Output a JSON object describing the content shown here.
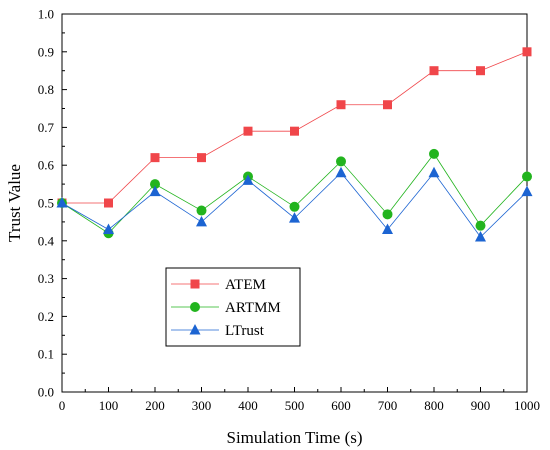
{
  "chart_data": {
    "type": "line",
    "title": "",
    "xlabel": "Simulation Time (s)",
    "ylabel": "Trust Value",
    "xlim": [
      0,
      1000
    ],
    "ylim": [
      0.0,
      1.0
    ],
    "x_ticks": [
      0,
      100,
      200,
      300,
      400,
      500,
      600,
      700,
      800,
      900,
      1000
    ],
    "y_ticks": [
      0.0,
      0.1,
      0.2,
      0.3,
      0.4,
      0.5,
      0.6,
      0.7,
      0.8,
      0.9,
      1.0
    ],
    "x_tick_labels": [
      "0",
      "100",
      "200",
      "300",
      "400",
      "500",
      "600",
      "700",
      "800",
      "900",
      "1000"
    ],
    "y_tick_labels": [
      "0.0",
      "0.1",
      "0.2",
      "0.3",
      "0.4",
      "0.5",
      "0.6",
      "0.7",
      "0.8",
      "0.9",
      "1.0"
    ],
    "grid": false,
    "legend_position": "lower-left",
    "series": [
      {
        "name": "ATEM",
        "marker": "square",
        "color": "#f0464a",
        "points": [
          [
            0,
            0.5
          ],
          [
            100,
            0.5
          ],
          [
            200,
            0.62
          ],
          [
            300,
            0.62
          ],
          [
            400,
            0.69
          ],
          [
            500,
            0.69
          ],
          [
            600,
            0.76
          ],
          [
            700,
            0.76
          ],
          [
            800,
            0.85
          ],
          [
            900,
            0.85
          ],
          [
            1000,
            0.9
          ]
        ]
      },
      {
        "name": "ARTMM",
        "marker": "circle",
        "color": "#22b41e",
        "points": [
          [
            0,
            0.5
          ],
          [
            100,
            0.42
          ],
          [
            200,
            0.55
          ],
          [
            300,
            0.48
          ],
          [
            400,
            0.57
          ],
          [
            500,
            0.49
          ],
          [
            600,
            0.61
          ],
          [
            700,
            0.47
          ],
          [
            800,
            0.63
          ],
          [
            900,
            0.44
          ],
          [
            1000,
            0.57
          ]
        ]
      },
      {
        "name": "LTrust",
        "marker": "triangle",
        "color": "#1c64d2",
        "points": [
          [
            0,
            0.5
          ],
          [
            100,
            0.43
          ],
          [
            200,
            0.53
          ],
          [
            300,
            0.45
          ],
          [
            400,
            0.56
          ],
          [
            500,
            0.46
          ],
          [
            600,
            0.58
          ],
          [
            700,
            0.43
          ],
          [
            800,
            0.58
          ],
          [
            900,
            0.41
          ],
          [
            1000,
            0.53
          ]
        ]
      }
    ]
  }
}
